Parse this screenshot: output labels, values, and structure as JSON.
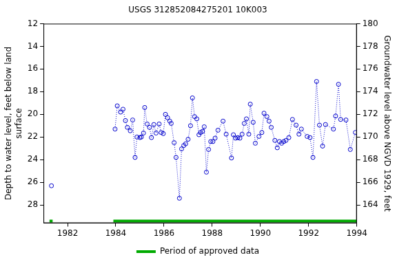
{
  "chart_data": {
    "type": "scatter",
    "title": "USGS 312852084275201 10K003",
    "ylabel": [
      "Depth to water level, feet below land",
      "surface"
    ],
    "y2label": "Groundwater level above NGVD 1929, feet",
    "xlim": [
      1981,
      1994
    ],
    "xticks": [
      1982,
      1984,
      1986,
      1988,
      1990,
      1992,
      1994
    ],
    "ylim": [
      29.6,
      12
    ],
    "yticks": [
      12,
      14,
      16,
      18,
      20,
      22,
      24,
      26,
      28
    ],
    "y2lim": [
      162.4,
      180
    ],
    "y2ticks": [
      164,
      166,
      168,
      170,
      172,
      174,
      176,
      178,
      180
    ],
    "grid": false,
    "legend": "bottom",
    "series": [
      {
        "color": "#0000cc",
        "marker": "circle",
        "line_style": "dotted",
        "x": [
          1981.33,
          null,
          1983.97,
          1984.06,
          1984.2,
          1984.3,
          1984.4,
          1984.48,
          1984.6,
          1984.7,
          1984.8,
          1984.88,
          1985.0,
          1985.06,
          1985.15,
          1985.2,
          1985.3,
          1985.4,
          1985.48,
          1985.58,
          1985.67,
          1985.8,
          1985.88,
          1985.97,
          1986.06,
          1986.15,
          1986.24,
          1986.3,
          1986.42,
          1986.5,
          1986.64,
          1986.73,
          1986.82,
          1986.9,
          1987.0,
          1987.1,
          1987.18,
          1987.27,
          1987.36,
          1987.45,
          1987.52,
          1987.6,
          1987.67,
          1987.76,
          1987.85,
          1987.94,
          1988.03,
          1988.12,
          1988.24,
          1988.45,
          1988.58,
          1988.8,
          1988.88,
          1988.97,
          1989.06,
          1989.15,
          1989.24,
          1989.33,
          1989.42,
          1989.52,
          1989.58,
          1989.7,
          1989.79,
          1989.94,
          1990.06,
          1990.15,
          1990.27,
          1990.36,
          1990.45,
          1990.6,
          1990.7,
          1990.79,
          1990.88,
          1990.97,
          1991.06,
          1991.18,
          1991.33,
          1991.48,
          1991.6,
          1991.7,
          1991.94,
          1992.06,
          1992.18,
          1992.33,
          1992.45,
          1992.58,
          1992.7,
          1993.03,
          1993.12,
          1993.24,
          1993.33,
          1993.55,
          1993.73,
          1993.94
        ],
        "values": [
          26.3,
          null,
          21.3,
          19.25,
          19.8,
          19.55,
          20.55,
          21.15,
          21.45,
          20.5,
          23.8,
          22.0,
          22.05,
          22.0,
          21.65,
          19.4,
          20.85,
          21.15,
          22.05,
          20.9,
          21.65,
          20.85,
          21.6,
          21.7,
          20.0,
          20.3,
          20.6,
          20.8,
          22.5,
          23.8,
          27.4,
          23.05,
          22.75,
          22.6,
          22.2,
          21.0,
          18.55,
          20.2,
          20.4,
          21.8,
          21.6,
          21.5,
          21.1,
          25.1,
          23.1,
          22.4,
          22.4,
          22.1,
          21.4,
          20.6,
          21.75,
          23.85,
          21.8,
          22.1,
          22.05,
          22.1,
          21.75,
          20.8,
          20.4,
          21.75,
          19.1,
          20.7,
          22.55,
          21.95,
          21.6,
          19.9,
          20.2,
          20.6,
          21.15,
          22.3,
          22.95,
          22.4,
          22.55,
          22.4,
          22.3,
          22.05,
          20.45,
          20.95,
          21.75,
          21.3,
          21.95,
          22.05,
          23.8,
          17.1,
          20.95,
          22.8,
          20.9,
          21.3,
          20.15,
          17.35,
          20.45,
          20.5,
          23.1,
          21.6
        ]
      }
    ],
    "approved_data": {
      "name": "Period of approved data",
      "color": "#00aa00",
      "periods": [
        [
          1981.25,
          1981.38
        ],
        [
          1983.9,
          1994
        ]
      ]
    }
  }
}
